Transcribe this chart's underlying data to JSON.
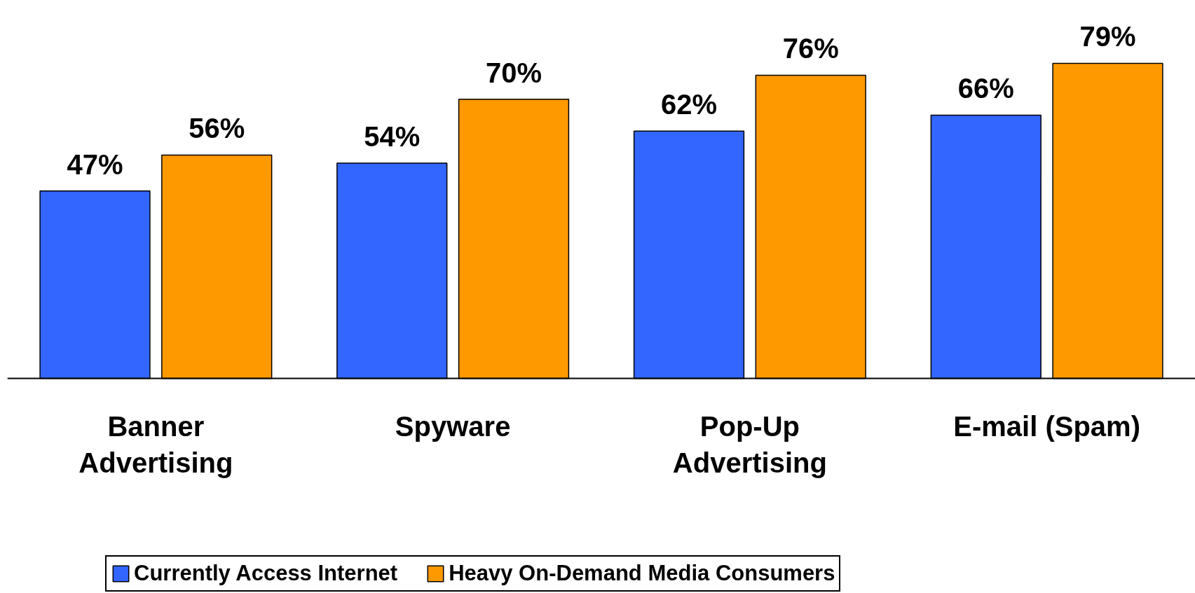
{
  "chart_data": {
    "type": "bar",
    "categories": [
      "Banner Advertising",
      "Spyware",
      "Pop-Up Advertising",
      "E-mail (Spam)"
    ],
    "series": [
      {
        "name": "Currently Access Internet",
        "color": "#3366ff",
        "values": [
          47,
          54,
          62,
          66
        ],
        "value_labels": [
          "47%",
          "54%",
          "62%",
          "66%"
        ]
      },
      {
        "name": "Heavy On-Demand Media Consumers",
        "color": "#ff9900",
        "values": [
          56,
          70,
          76,
          79
        ],
        "value_labels": [
          "56%",
          "70%",
          "76%",
          "79%"
        ]
      }
    ],
    "legend": "bottom",
    "grid": false
  }
}
